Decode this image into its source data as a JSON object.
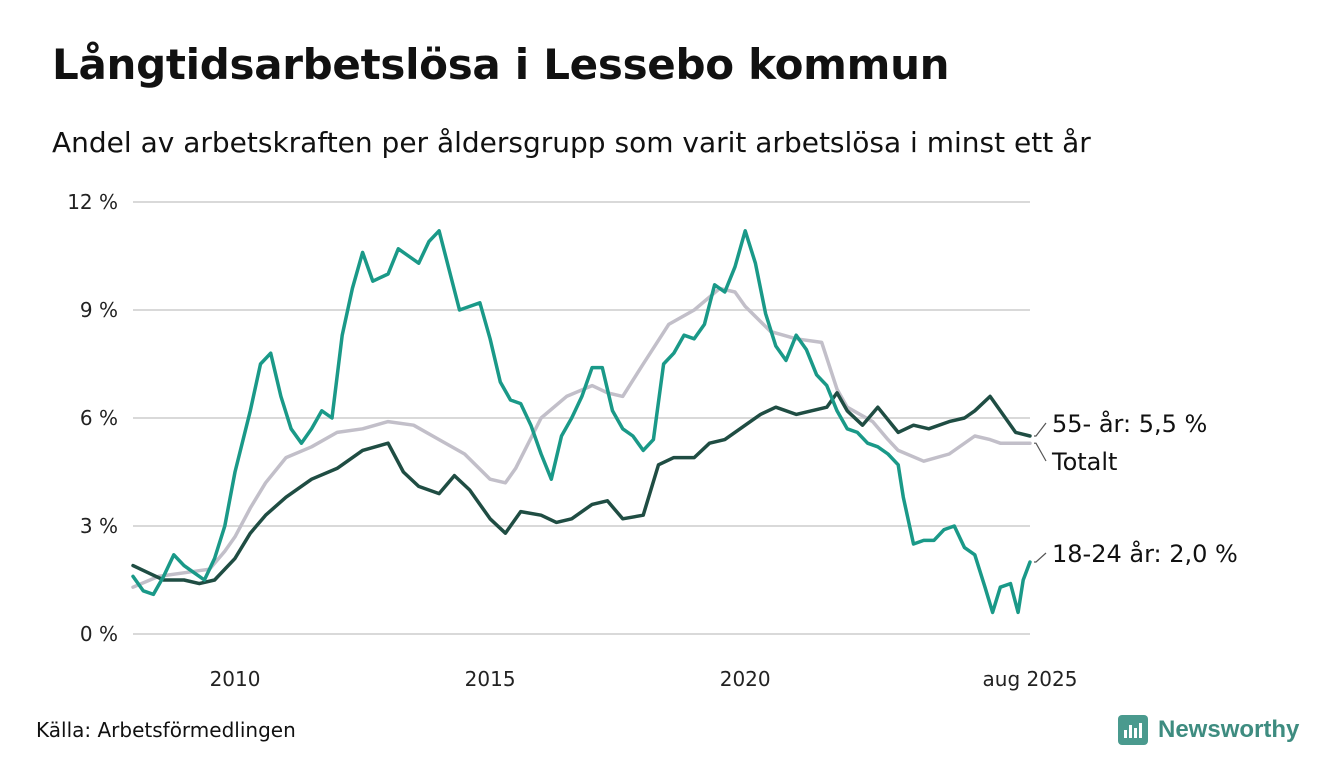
{
  "header": {
    "title": "Långtidsarbetslösa i Lessebo kommun",
    "subtitle": "Andel av arbetskraften per åldersgrupp som varit arbetslösa i minst ett år"
  },
  "footer": {
    "source": "Källa: Arbetsförmedlingen",
    "brand": "Newsworthy"
  },
  "chart_data": {
    "type": "line",
    "title": "Långtidsarbetslösa i Lessebo kommun",
    "subtitle": "Andel av arbetskraften per åldersgrupp som varit arbetslösa i minst ett år",
    "xlim": [
      2008.0,
      2025.583
    ],
    "ylim": [
      0,
      12
    ],
    "y_ticks": [
      {
        "value": 0,
        "label": "0 %"
      },
      {
        "value": 3,
        "label": "3 %"
      },
      {
        "value": 6,
        "label": "6 %"
      },
      {
        "value": 9,
        "label": "9 %"
      },
      {
        "value": 12,
        "label": "12 %"
      }
    ],
    "x_ticks": [
      {
        "value": 2010.0,
        "label": "2010"
      },
      {
        "value": 2015.0,
        "label": "2015"
      },
      {
        "value": 2020.0,
        "label": "2020"
      },
      {
        "value": 2025.583,
        "label": "aug 2025"
      }
    ],
    "grid": "horizontal",
    "series": [
      {
        "name": "Totalt",
        "color": "#c2bfc9",
        "end_label": "Totalt",
        "points": [
          [
            2008.0,
            1.3
          ],
          [
            2008.5,
            1.6
          ],
          [
            2009.0,
            1.7
          ],
          [
            2009.5,
            1.8
          ],
          [
            2009.8,
            2.3
          ],
          [
            2010.0,
            2.7
          ],
          [
            2010.3,
            3.5
          ],
          [
            2010.6,
            4.2
          ],
          [
            2011.0,
            4.9
          ],
          [
            2011.5,
            5.2
          ],
          [
            2012.0,
            5.6
          ],
          [
            2012.5,
            5.7
          ],
          [
            2013.0,
            5.9
          ],
          [
            2013.5,
            5.8
          ],
          [
            2014.0,
            5.4
          ],
          [
            2014.5,
            5.0
          ],
          [
            2015.0,
            4.3
          ],
          [
            2015.3,
            4.2
          ],
          [
            2015.5,
            4.6
          ],
          [
            2016.0,
            6.0
          ],
          [
            2016.5,
            6.6
          ],
          [
            2017.0,
            6.9
          ],
          [
            2017.3,
            6.7
          ],
          [
            2017.6,
            6.6
          ],
          [
            2018.0,
            7.5
          ],
          [
            2018.5,
            8.6
          ],
          [
            2019.0,
            9.0
          ],
          [
            2019.5,
            9.6
          ],
          [
            2019.8,
            9.5
          ],
          [
            2020.0,
            9.1
          ],
          [
            2020.5,
            8.4
          ],
          [
            2021.0,
            8.2
          ],
          [
            2021.5,
            8.1
          ],
          [
            2021.8,
            6.8
          ],
          [
            2022.0,
            6.3
          ],
          [
            2022.5,
            5.9
          ],
          [
            2022.8,
            5.4
          ],
          [
            2023.0,
            5.1
          ],
          [
            2023.5,
            4.8
          ],
          [
            2024.0,
            5.0
          ],
          [
            2024.5,
            5.5
          ],
          [
            2024.8,
            5.4
          ],
          [
            2025.0,
            5.3
          ],
          [
            2025.583,
            5.3
          ]
        ]
      },
      {
        "name": "55- år",
        "color": "#1f4d43",
        "end_label": "55- år: 5,5 %",
        "points": [
          [
            2008.0,
            1.9
          ],
          [
            2008.3,
            1.7
          ],
          [
            2008.6,
            1.5
          ],
          [
            2009.0,
            1.5
          ],
          [
            2009.3,
            1.4
          ],
          [
            2009.6,
            1.5
          ],
          [
            2010.0,
            2.1
          ],
          [
            2010.3,
            2.8
          ],
          [
            2010.6,
            3.3
          ],
          [
            2011.0,
            3.8
          ],
          [
            2011.5,
            4.3
          ],
          [
            2012.0,
            4.6
          ],
          [
            2012.5,
            5.1
          ],
          [
            2013.0,
            5.3
          ],
          [
            2013.3,
            4.5
          ],
          [
            2013.6,
            4.1
          ],
          [
            2014.0,
            3.9
          ],
          [
            2014.3,
            4.4
          ],
          [
            2014.6,
            4.0
          ],
          [
            2015.0,
            3.2
          ],
          [
            2015.3,
            2.8
          ],
          [
            2015.6,
            3.4
          ],
          [
            2016.0,
            3.3
          ],
          [
            2016.3,
            3.1
          ],
          [
            2016.6,
            3.2
          ],
          [
            2017.0,
            3.6
          ],
          [
            2017.3,
            3.7
          ],
          [
            2017.6,
            3.2
          ],
          [
            2018.0,
            3.3
          ],
          [
            2018.3,
            4.7
          ],
          [
            2018.6,
            4.9
          ],
          [
            2019.0,
            4.9
          ],
          [
            2019.3,
            5.3
          ],
          [
            2019.6,
            5.4
          ],
          [
            2020.0,
            5.8
          ],
          [
            2020.3,
            6.1
          ],
          [
            2020.6,
            6.3
          ],
          [
            2021.0,
            6.1
          ],
          [
            2021.3,
            6.2
          ],
          [
            2021.6,
            6.3
          ],
          [
            2021.8,
            6.7
          ],
          [
            2022.0,
            6.2
          ],
          [
            2022.3,
            5.8
          ],
          [
            2022.6,
            6.3
          ],
          [
            2023.0,
            5.6
          ],
          [
            2023.3,
            5.8
          ],
          [
            2023.6,
            5.7
          ],
          [
            2024.0,
            5.9
          ],
          [
            2024.3,
            6.0
          ],
          [
            2024.5,
            6.2
          ],
          [
            2024.8,
            6.6
          ],
          [
            2025.0,
            6.2
          ],
          [
            2025.3,
            5.6
          ],
          [
            2025.583,
            5.5
          ]
        ]
      },
      {
        "name": "18-24 år",
        "color": "#1a9988",
        "end_label": "18-24 år: 2,0 %",
        "points": [
          [
            2008.0,
            1.6
          ],
          [
            2008.2,
            1.2
          ],
          [
            2008.4,
            1.1
          ],
          [
            2008.6,
            1.6
          ],
          [
            2008.8,
            2.2
          ],
          [
            2009.0,
            1.9
          ],
          [
            2009.2,
            1.7
          ],
          [
            2009.4,
            1.5
          ],
          [
            2009.6,
            2.1
          ],
          [
            2009.8,
            3.0
          ],
          [
            2010.0,
            4.5
          ],
          [
            2010.3,
            6.2
          ],
          [
            2010.5,
            7.5
          ],
          [
            2010.7,
            7.8
          ],
          [
            2010.9,
            6.6
          ],
          [
            2011.1,
            5.7
          ],
          [
            2011.3,
            5.3
          ],
          [
            2011.5,
            5.7
          ],
          [
            2011.7,
            6.2
          ],
          [
            2011.9,
            6.0
          ],
          [
            2012.1,
            8.3
          ],
          [
            2012.3,
            9.6
          ],
          [
            2012.5,
            10.6
          ],
          [
            2012.7,
            9.8
          ],
          [
            2013.0,
            10.0
          ],
          [
            2013.2,
            10.7
          ],
          [
            2013.4,
            10.5
          ],
          [
            2013.6,
            10.3
          ],
          [
            2013.8,
            10.9
          ],
          [
            2014.0,
            11.2
          ],
          [
            2014.2,
            10.1
          ],
          [
            2014.4,
            9.0
          ],
          [
            2014.6,
            9.1
          ],
          [
            2014.8,
            9.2
          ],
          [
            2015.0,
            8.2
          ],
          [
            2015.2,
            7.0
          ],
          [
            2015.4,
            6.5
          ],
          [
            2015.6,
            6.4
          ],
          [
            2015.8,
            5.8
          ],
          [
            2016.0,
            5.0
          ],
          [
            2016.2,
            4.3
          ],
          [
            2016.4,
            5.5
          ],
          [
            2016.6,
            6.0
          ],
          [
            2016.8,
            6.6
          ],
          [
            2017.0,
            7.4
          ],
          [
            2017.2,
            7.4
          ],
          [
            2017.4,
            6.2
          ],
          [
            2017.6,
            5.7
          ],
          [
            2017.8,
            5.5
          ],
          [
            2018.0,
            5.1
          ],
          [
            2018.2,
            5.4
          ],
          [
            2018.4,
            7.5
          ],
          [
            2018.6,
            7.8
          ],
          [
            2018.8,
            8.3
          ],
          [
            2019.0,
            8.2
          ],
          [
            2019.2,
            8.6
          ],
          [
            2019.4,
            9.7
          ],
          [
            2019.6,
            9.5
          ],
          [
            2019.8,
            10.2
          ],
          [
            2020.0,
            11.2
          ],
          [
            2020.2,
            10.3
          ],
          [
            2020.4,
            8.9
          ],
          [
            2020.6,
            8.0
          ],
          [
            2020.8,
            7.6
          ],
          [
            2021.0,
            8.3
          ],
          [
            2021.2,
            7.9
          ],
          [
            2021.4,
            7.2
          ],
          [
            2021.6,
            6.9
          ],
          [
            2021.8,
            6.2
          ],
          [
            2022.0,
            5.7
          ],
          [
            2022.2,
            5.6
          ],
          [
            2022.4,
            5.3
          ],
          [
            2022.6,
            5.2
          ],
          [
            2022.8,
            5.0
          ],
          [
            2023.0,
            4.7
          ],
          [
            2023.1,
            3.8
          ],
          [
            2023.3,
            2.5
          ],
          [
            2023.5,
            2.6
          ],
          [
            2023.7,
            2.6
          ],
          [
            2023.9,
            2.9
          ],
          [
            2024.1,
            3.0
          ],
          [
            2024.3,
            2.4
          ],
          [
            2024.5,
            2.2
          ],
          [
            2024.7,
            1.3
          ],
          [
            2024.85,
            0.6
          ],
          [
            2025.0,
            1.3
          ],
          [
            2025.2,
            1.4
          ],
          [
            2025.35,
            0.6
          ],
          [
            2025.45,
            1.5
          ],
          [
            2025.583,
            2.0
          ]
        ]
      }
    ]
  }
}
